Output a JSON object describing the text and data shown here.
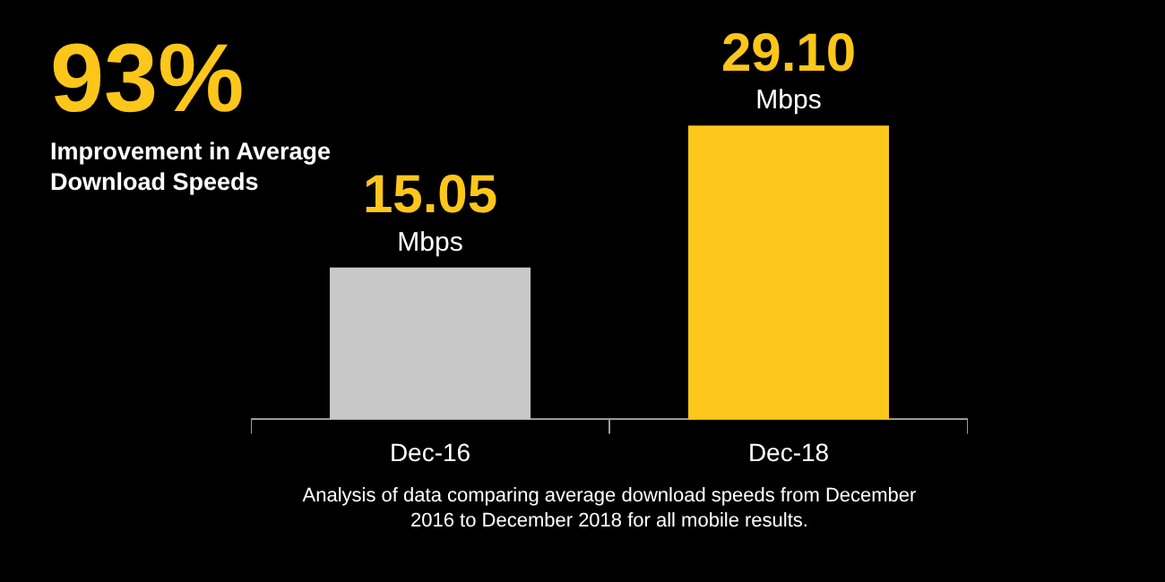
{
  "chart_data": {
    "type": "bar",
    "title": "93%",
    "subtitle": "Improvement in Average Download Speeds",
    "categories": [
      "Dec-16",
      "Dec-18"
    ],
    "values": [
      15.05,
      29.1
    ],
    "colors": [
      "#c8c8c8",
      "#fdc61a"
    ],
    "value_labels": [
      "15.05",
      "29.10"
    ],
    "annotations": [
      {
        "text": "Mbps",
        "x": "Dec-16",
        "y": 15.05
      },
      {
        "text": "Mbps",
        "x": "Dec-18",
        "y": 29.1
      },
      "Analysis of data comparing average download speeds from December 2016 to December 2018 for all mobile results."
    ]
  }
}
